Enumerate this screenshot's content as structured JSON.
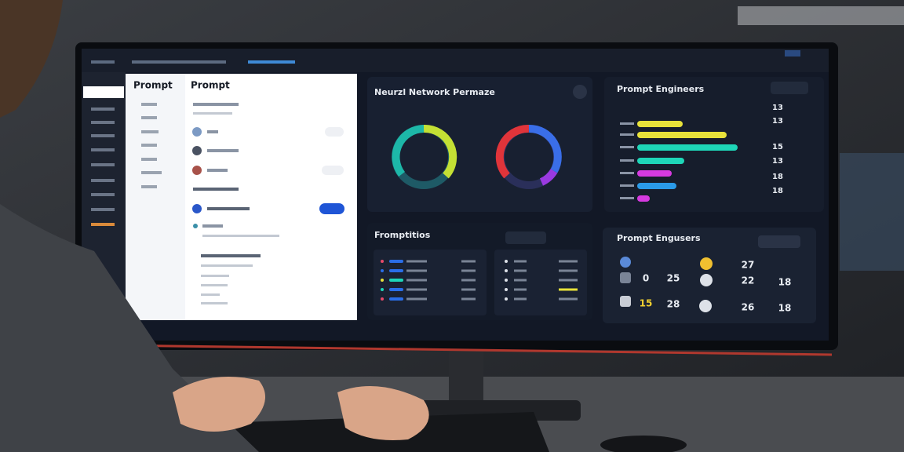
{
  "sidebar_panel": {
    "title": "Prompt"
  },
  "list_panel": {
    "title": "Prompt"
  },
  "network_card": {
    "title": "Neurzl Network Permaze"
  },
  "engineers_card": {
    "title": "Prompt Engineers",
    "numbers": [
      "13",
      "13",
      "15",
      "13",
      "18",
      "18"
    ]
  },
  "activity_card": {
    "title": "Fromptitios"
  },
  "users_card": {
    "title": "Prompt Engusers",
    "numbers": [
      "27",
      "0",
      "25",
      "22",
      "18",
      "15",
      "28",
      "26",
      "18"
    ]
  }
}
